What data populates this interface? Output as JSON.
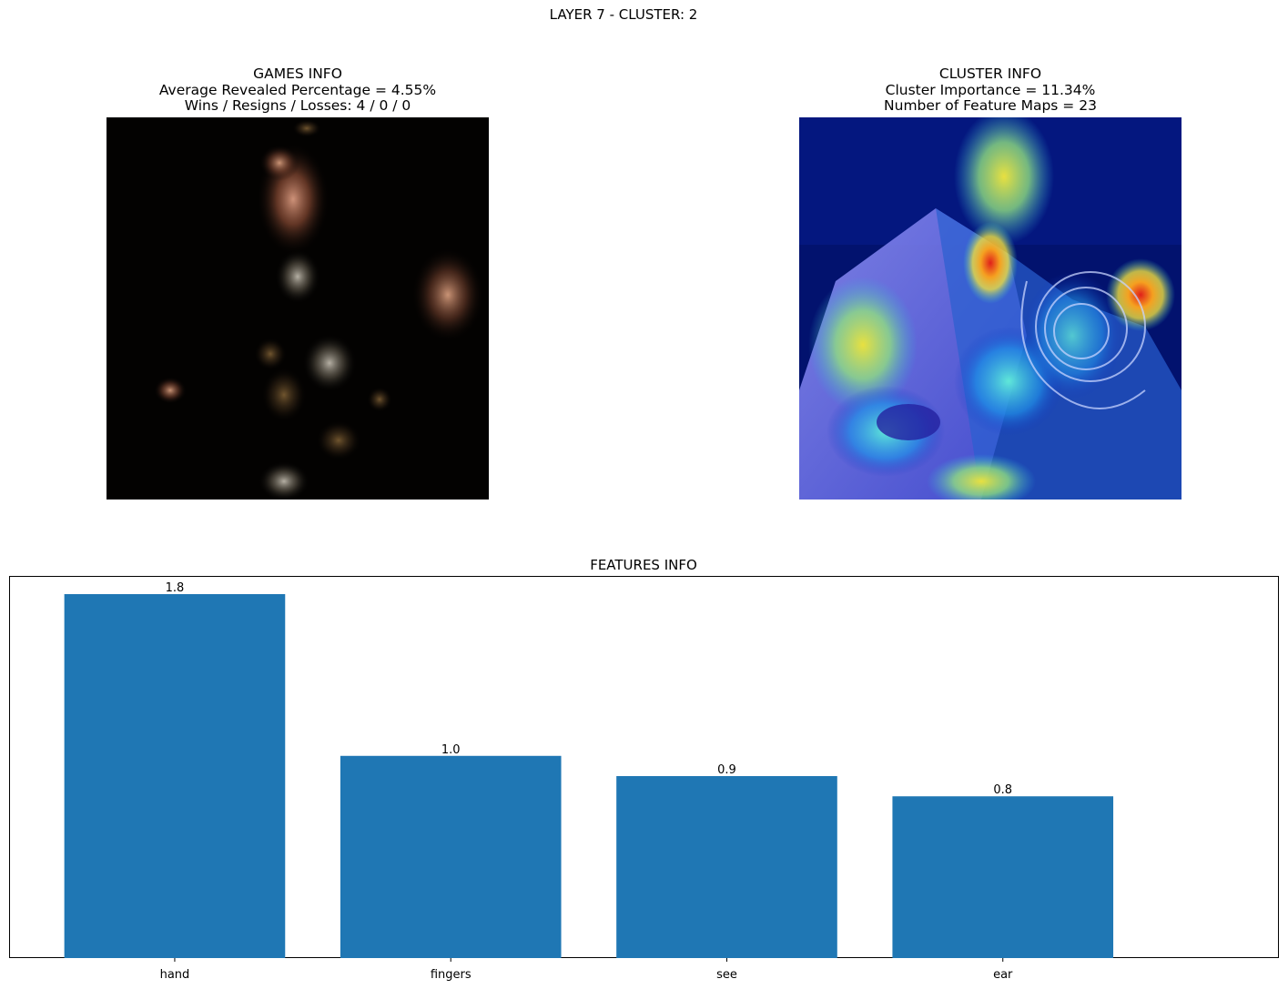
{
  "suptitle": "LAYER 7 - CLUSTER: 2",
  "games_panel": {
    "title": "GAMES INFO",
    "line1": "Average Revealed Percentage = 4.55%",
    "line2": "Wins / Resigns / Losses: 4 / 0 / 0"
  },
  "cluster_panel": {
    "title": "CLUSTER INFO",
    "line1": "Cluster Importance = 11.34%",
    "line2": "Number of Feature Maps = 23"
  },
  "chart_data": {
    "type": "bar",
    "title": "FEATURES INFO",
    "categories": [
      "hand",
      "fingers",
      "see",
      "ear"
    ],
    "values": [
      1.8,
      1.0,
      0.9,
      0.8
    ],
    "value_labels": [
      "1.8",
      "1.0",
      "0.9",
      "0.8"
    ],
    "ylim": [
      0,
      1.89
    ],
    "bar_color": "#1f77b4",
    "grid": false,
    "y_ticks_visible": false
  }
}
